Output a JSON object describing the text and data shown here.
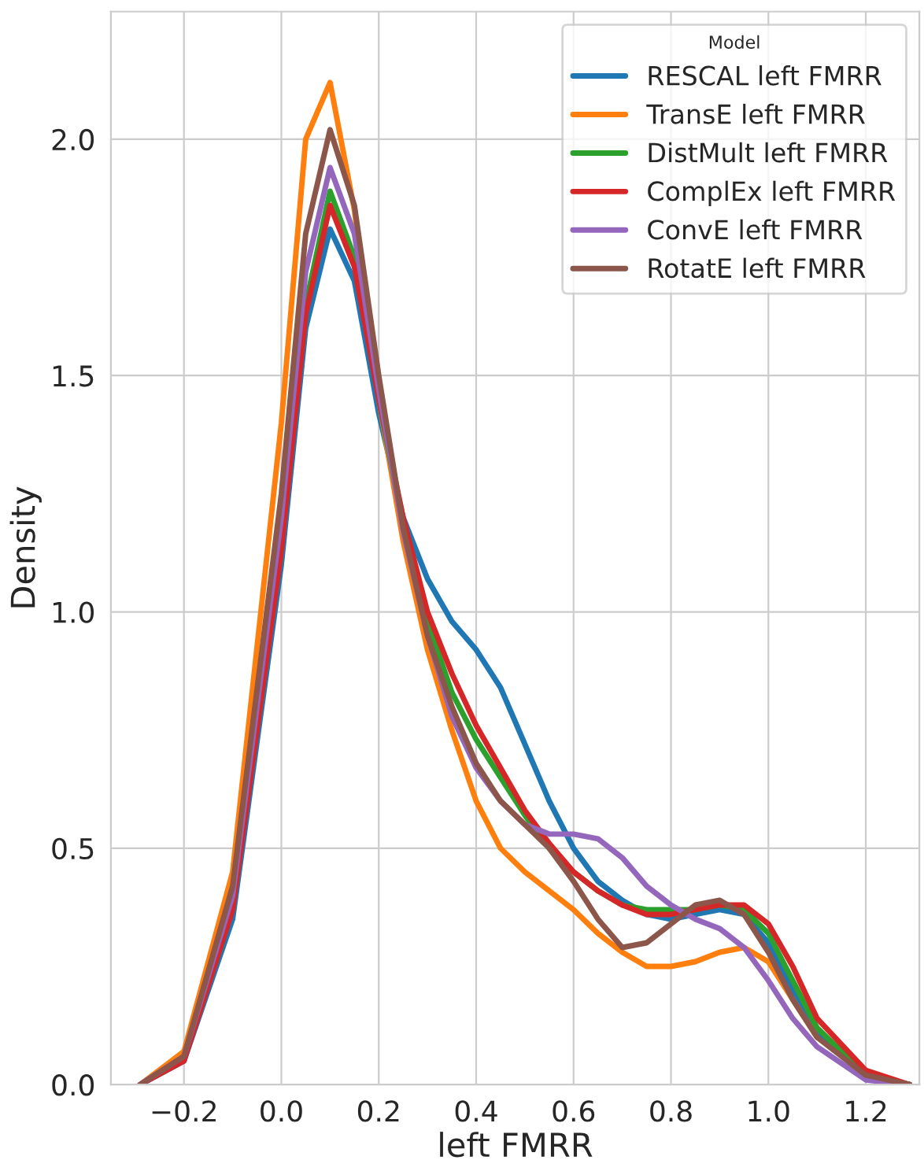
{
  "chart_data": {
    "type": "line",
    "xlabel": "left FMRR",
    "ylabel": "Density",
    "legend_title": "Model",
    "legend": "top right",
    "grid": true,
    "x": [
      -0.29,
      -0.2,
      -0.1,
      0.0,
      0.05,
      0.1,
      0.15,
      0.2,
      0.25,
      0.3,
      0.35,
      0.4,
      0.45,
      0.5,
      0.55,
      0.6,
      0.65,
      0.7,
      0.75,
      0.8,
      0.85,
      0.9,
      0.95,
      1.0,
      1.05,
      1.1,
      1.2,
      1.29
    ],
    "xlim": [
      -0.35,
      1.31
    ],
    "ylim": [
      0,
      2.27
    ],
    "xticks": [
      {
        "value": -0.2,
        "label": "−0.2"
      },
      {
        "value": 0,
        "label": "0.0"
      },
      0.2,
      0.4,
      0.6,
      0.8,
      {
        "value": 1,
        "label": "1.0"
      },
      1.2
    ],
    "yticks": [
      {
        "value": 0,
        "label": "0.0"
      },
      0.5,
      {
        "value": 1,
        "label": "1.0"
      },
      1.5,
      {
        "value": 2,
        "label": "2.0"
      }
    ],
    "series": [
      {
        "name": "RESCAL left FMRR",
        "color": "#1f77b4",
        "values": [
          0,
          0.05,
          0.35,
          1.1,
          1.6,
          1.81,
          1.7,
          1.42,
          1.2,
          1.07,
          0.98,
          0.92,
          0.84,
          0.72,
          0.6,
          0.5,
          0.43,
          0.39,
          0.36,
          0.35,
          0.36,
          0.37,
          0.36,
          0.3,
          0.2,
          0.11,
          0.02,
          0
        ]
      },
      {
        "name": "TransE left FMRR",
        "color": "#ff7f0e",
        "values": [
          0,
          0.07,
          0.45,
          1.4,
          2.0,
          2.12,
          1.85,
          1.45,
          1.15,
          0.92,
          0.75,
          0.6,
          0.5,
          0.45,
          0.41,
          0.37,
          0.32,
          0.28,
          0.25,
          0.25,
          0.26,
          0.28,
          0.29,
          0.26,
          0.18,
          0.1,
          null,
          null
        ]
      },
      {
        "name": "DistMult left FMRR",
        "color": "#2ca02c",
        "values": [
          null,
          null,
          null,
          1.15,
          1.65,
          1.89,
          1.75,
          1.45,
          1.18,
          0.98,
          0.83,
          0.73,
          0.65,
          0.57,
          0.5,
          0.45,
          0.41,
          0.38,
          0.37,
          0.37,
          0.37,
          0.38,
          0.37,
          0.32,
          0.22,
          0.12,
          0.02,
          0
        ]
      },
      {
        "name": "ComplEx left FMRR",
        "color": "#d62728",
        "values": [
          0,
          0.05,
          0.37,
          1.13,
          1.63,
          1.86,
          1.73,
          1.45,
          1.2,
          1.0,
          0.87,
          0.76,
          0.67,
          0.58,
          0.51,
          0.45,
          0.41,
          0.38,
          0.36,
          0.36,
          0.37,
          0.38,
          0.38,
          0.34,
          0.25,
          0.14,
          0.03,
          0
        ]
      },
      {
        "name": "ConvE left FMRR",
        "color": "#9467bd",
        "values": [
          0,
          0.06,
          0.4,
          1.2,
          1.72,
          1.94,
          1.8,
          1.47,
          1.17,
          0.95,
          0.78,
          0.67,
          0.6,
          0.55,
          0.53,
          0.53,
          0.52,
          0.48,
          0.42,
          0.38,
          0.35,
          0.33,
          0.29,
          0.22,
          0.14,
          0.08,
          0.01,
          0
        ]
      },
      {
        "name": "RotatE left FMRR",
        "color": "#8c564b",
        "values": [
          0,
          0.06,
          0.42,
          1.25,
          1.8,
          2.02,
          1.86,
          1.5,
          1.18,
          0.95,
          0.8,
          0.68,
          0.6,
          0.55,
          0.5,
          0.43,
          0.35,
          0.29,
          0.3,
          0.34,
          0.38,
          0.39,
          0.36,
          0.28,
          0.18,
          0.1,
          0.02,
          0
        ]
      }
    ]
  }
}
